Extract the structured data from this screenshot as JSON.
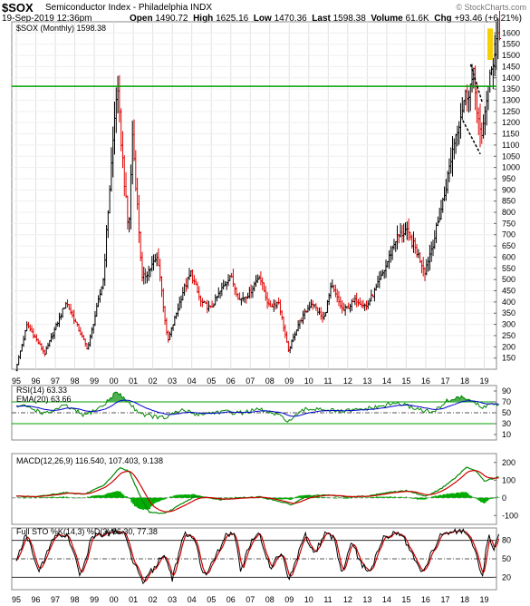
{
  "header": {
    "symbol": "$SOX",
    "name": "Semiconductor Index - Philadelphia INDX",
    "date": "19-Sep-2019 12:36pm",
    "open_label": "Open",
    "open": "1490.72",
    "high_label": "High",
    "high": "1625.16",
    "low_label": "Low",
    "low": "1470.36",
    "last_label": "Last",
    "last": "1598.38",
    "volume_label": "Volume",
    "volume": "61.6K",
    "chg_label": "Chg",
    "chg": "+93.46 (+6.21%)",
    "watermark": "© StockCharts.com"
  },
  "colors": {
    "up": "#000000",
    "down": "#e00000",
    "hline": "#00a000",
    "rsi": "#008800",
    "ema": "#0000cc",
    "macd": "#008800",
    "signal": "#cc0000",
    "hist": "#00aa00",
    "stoK": "#000000",
    "stoD": "#cc0000"
  },
  "chart_data": [
    {
      "type": "candlestick",
      "legend": "$SOX (Monthly) 1598.38",
      "x_ticks": [
        "95",
        "96",
        "97",
        "98",
        "99",
        "00",
        "01",
        "02",
        "03",
        "04",
        "05",
        "06",
        "07",
        "08",
        "09",
        "10",
        "11",
        "12",
        "13",
        "14",
        "15",
        "16",
        "17",
        "18",
        "19"
      ],
      "y_ticks": [
        150,
        200,
        250,
        300,
        350,
        400,
        450,
        500,
        550,
        600,
        650,
        700,
        750,
        800,
        850,
        900,
        950,
        1000,
        1050,
        1100,
        1150,
        1200,
        1250,
        1300,
        1350,
        1400,
        1450,
        1500,
        1550,
        1600
      ],
      "ylim": [
        100,
        1650
      ],
      "horizontal_line": 1362,
      "anchors": [
        [
          1995.0,
          95
        ],
        [
          1995.6,
          300
        ],
        [
          1996.5,
          170
        ],
        [
          1997.6,
          400
        ],
        [
          1998.7,
          190
        ],
        [
          1999.5,
          500
        ],
        [
          2000.2,
          1362
        ],
        [
          2000.8,
          700
        ],
        [
          2001.0,
          1150
        ],
        [
          2001.5,
          500
        ],
        [
          2002.3,
          600
        ],
        [
          2002.8,
          220
        ],
        [
          2003.6,
          450
        ],
        [
          2004.0,
          530
        ],
        [
          2004.5,
          400
        ],
        [
          2005.0,
          370
        ],
        [
          2006.0,
          520
        ],
        [
          2006.5,
          410
        ],
        [
          2007.0,
          440
        ],
        [
          2007.5,
          520
        ],
        [
          2008.0,
          380
        ],
        [
          2008.5,
          400
        ],
        [
          2009.0,
          180
        ],
        [
          2009.5,
          300
        ],
        [
          2010.2,
          400
        ],
        [
          2010.8,
          320
        ],
        [
          2011.2,
          470
        ],
        [
          2011.8,
          360
        ],
        [
          2012.5,
          410
        ],
        [
          2013.0,
          380
        ],
        [
          2013.5,
          460
        ],
        [
          2014.0,
          560
        ],
        [
          2014.5,
          680
        ],
        [
          2015.0,
          720
        ],
        [
          2015.5,
          640
        ],
        [
          2016.0,
          540
        ],
        [
          2016.5,
          690
        ],
        [
          2017.0,
          880
        ],
        [
          2017.5,
          1120
        ],
        [
          2018.0,
          1300
        ],
        [
          2018.5,
          1400
        ],
        [
          2018.9,
          1100
        ],
        [
          2019.1,
          1280
        ],
        [
          2019.4,
          1420
        ],
        [
          2019.7,
          1598
        ]
      ],
      "high_2018_label": "1450",
      "wedge": {
        "upper": [
          [
            2018.3,
            1460
          ],
          [
            2018.9,
            1290
          ]
        ],
        "lower": [
          [
            2017.9,
            1210
          ],
          [
            2018.8,
            1060
          ]
        ]
      }
    },
    {
      "type": "line",
      "legend_rsi": "RSI(14) 63.33",
      "legend_ema": "EMA(20) 63.66",
      "y_ticks": [
        10,
        30,
        50,
        70,
        90
      ],
      "ylim": [
        0,
        100
      ],
      "levels": [
        70,
        50,
        30
      ],
      "anchors": [
        [
          1995.5,
          62
        ],
        [
          1996.5,
          48
        ],
        [
          1997.5,
          63
        ],
        [
          1998.5,
          45
        ],
        [
          1999.5,
          64
        ],
        [
          2000.1,
          88
        ],
        [
          2000.6,
          75
        ],
        [
          2001.1,
          56
        ],
        [
          2001.6,
          46
        ],
        [
          2002.6,
          40
        ],
        [
          2003.5,
          55
        ],
        [
          2004.3,
          47
        ],
        [
          2005.5,
          52
        ],
        [
          2006.5,
          50
        ],
        [
          2007.5,
          56
        ],
        [
          2008.5,
          44
        ],
        [
          2009.0,
          35
        ],
        [
          2009.8,
          56
        ],
        [
          2010.6,
          58
        ],
        [
          2011.5,
          52
        ],
        [
          2012.5,
          55
        ],
        [
          2013.5,
          60
        ],
        [
          2014.5,
          68
        ],
        [
          2015.5,
          58
        ],
        [
          2016.4,
          50
        ],
        [
          2017.0,
          70
        ],
        [
          2017.6,
          78
        ],
        [
          2018.2,
          76
        ],
        [
          2018.9,
          58
        ],
        [
          2019.3,
          68
        ],
        [
          2019.7,
          63
        ]
      ]
    },
    {
      "type": "line",
      "legend": "MACD(12,26,9) 116.540, 107.403, 9.138",
      "y_ticks": [
        200,
        100,
        0,
        -100
      ],
      "ylim": [
        -150,
        250
      ],
      "anchors": [
        [
          1995.0,
          10
        ],
        [
          1996.0,
          5
        ],
        [
          1997.5,
          30
        ],
        [
          1998.5,
          20
        ],
        [
          1999.5,
          70
        ],
        [
          2000.3,
          170
        ],
        [
          2000.8,
          150
        ],
        [
          2001.3,
          20
        ],
        [
          2001.8,
          -80
        ],
        [
          2002.6,
          -90
        ],
        [
          2003.4,
          -40
        ],
        [
          2004.2,
          10
        ],
        [
          2005.5,
          -10
        ],
        [
          2006.5,
          0
        ],
        [
          2007.5,
          5
        ],
        [
          2008.5,
          -20
        ],
        [
          2009.1,
          -40
        ],
        [
          2009.9,
          10
        ],
        [
          2011.0,
          15
        ],
        [
          2012.0,
          5
        ],
        [
          2013.0,
          10
        ],
        [
          2014.0,
          30
        ],
        [
          2015.0,
          40
        ],
        [
          2016.0,
          10
        ],
        [
          2016.7,
          45
        ],
        [
          2017.5,
          110
        ],
        [
          2018.1,
          175
        ],
        [
          2018.6,
          150
        ],
        [
          2019.0,
          95
        ],
        [
          2019.5,
          110
        ],
        [
          2019.7,
          117
        ]
      ]
    },
    {
      "type": "line",
      "legend": "Full STO %K(14,3) %D(3) 86.30, 77.38",
      "y_ticks": [
        80,
        50,
        20
      ],
      "ylim": [
        0,
        100
      ],
      "x_ticks": [
        "95",
        "96",
        "97",
        "98",
        "99",
        "00",
        "01",
        "02",
        "03",
        "04",
        "05",
        "06",
        "07",
        "08",
        "09",
        "10",
        "11",
        "12",
        "13",
        "14",
        "15",
        "16",
        "17",
        "18",
        "19"
      ],
      "anchors": [
        [
          1995.0,
          50
        ],
        [
          1995.5,
          90
        ],
        [
          1996.2,
          30
        ],
        [
          1996.9,
          85
        ],
        [
          1997.6,
          90
        ],
        [
          1998.3,
          22
        ],
        [
          1998.9,
          88
        ],
        [
          1999.6,
          90
        ],
        [
          2000.1,
          96
        ],
        [
          2000.6,
          88
        ],
        [
          2001.0,
          45
        ],
        [
          2001.5,
          15
        ],
        [
          2002.2,
          40
        ],
        [
          2002.6,
          60
        ],
        [
          2003.0,
          18
        ],
        [
          2003.6,
          90
        ],
        [
          2004.2,
          80
        ],
        [
          2004.6,
          20
        ],
        [
          2005.2,
          50
        ],
        [
          2005.7,
          88
        ],
        [
          2006.2,
          90
        ],
        [
          2006.5,
          30
        ],
        [
          2007.0,
          75
        ],
        [
          2007.5,
          90
        ],
        [
          2008.0,
          35
        ],
        [
          2008.6,
          60
        ],
        [
          2009.0,
          15
        ],
        [
          2009.8,
          90
        ],
        [
          2010.3,
          60
        ],
        [
          2010.8,
          90
        ],
        [
          2011.3,
          85
        ],
        [
          2011.7,
          25
        ],
        [
          2012.2,
          80
        ],
        [
          2012.7,
          40
        ],
        [
          2013.2,
          30
        ],
        [
          2013.8,
          85
        ],
        [
          2014.3,
          90
        ],
        [
          2014.8,
          88
        ],
        [
          2015.3,
          60
        ],
        [
          2015.8,
          25
        ],
        [
          2016.3,
          60
        ],
        [
          2016.8,
          92
        ],
        [
          2017.5,
          93
        ],
        [
          2018.0,
          95
        ],
        [
          2018.5,
          65
        ],
        [
          2018.9,
          15
        ],
        [
          2019.2,
          90
        ],
        [
          2019.5,
          60
        ],
        [
          2019.7,
          86
        ]
      ]
    }
  ]
}
